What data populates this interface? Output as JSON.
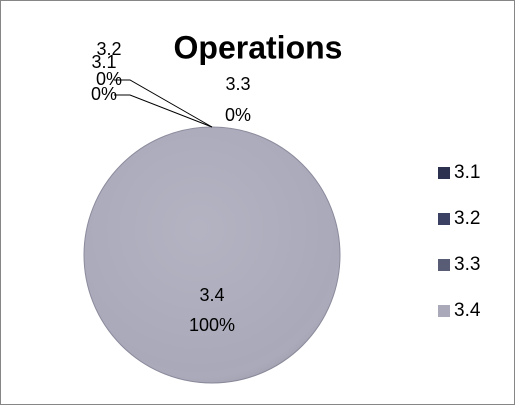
{
  "chart_data": {
    "type": "pie",
    "title": "Operations",
    "categories": [
      "3.1",
      "3.2",
      "3.3",
      "3.4"
    ],
    "values": [
      0,
      0,
      0,
      100
    ],
    "value_labels": [
      "0%",
      "0%",
      "0%",
      "100%"
    ],
    "colors": [
      "#2d3150",
      "#3b4163",
      "#585d75",
      "#a9a9ba"
    ],
    "legend": "right"
  }
}
